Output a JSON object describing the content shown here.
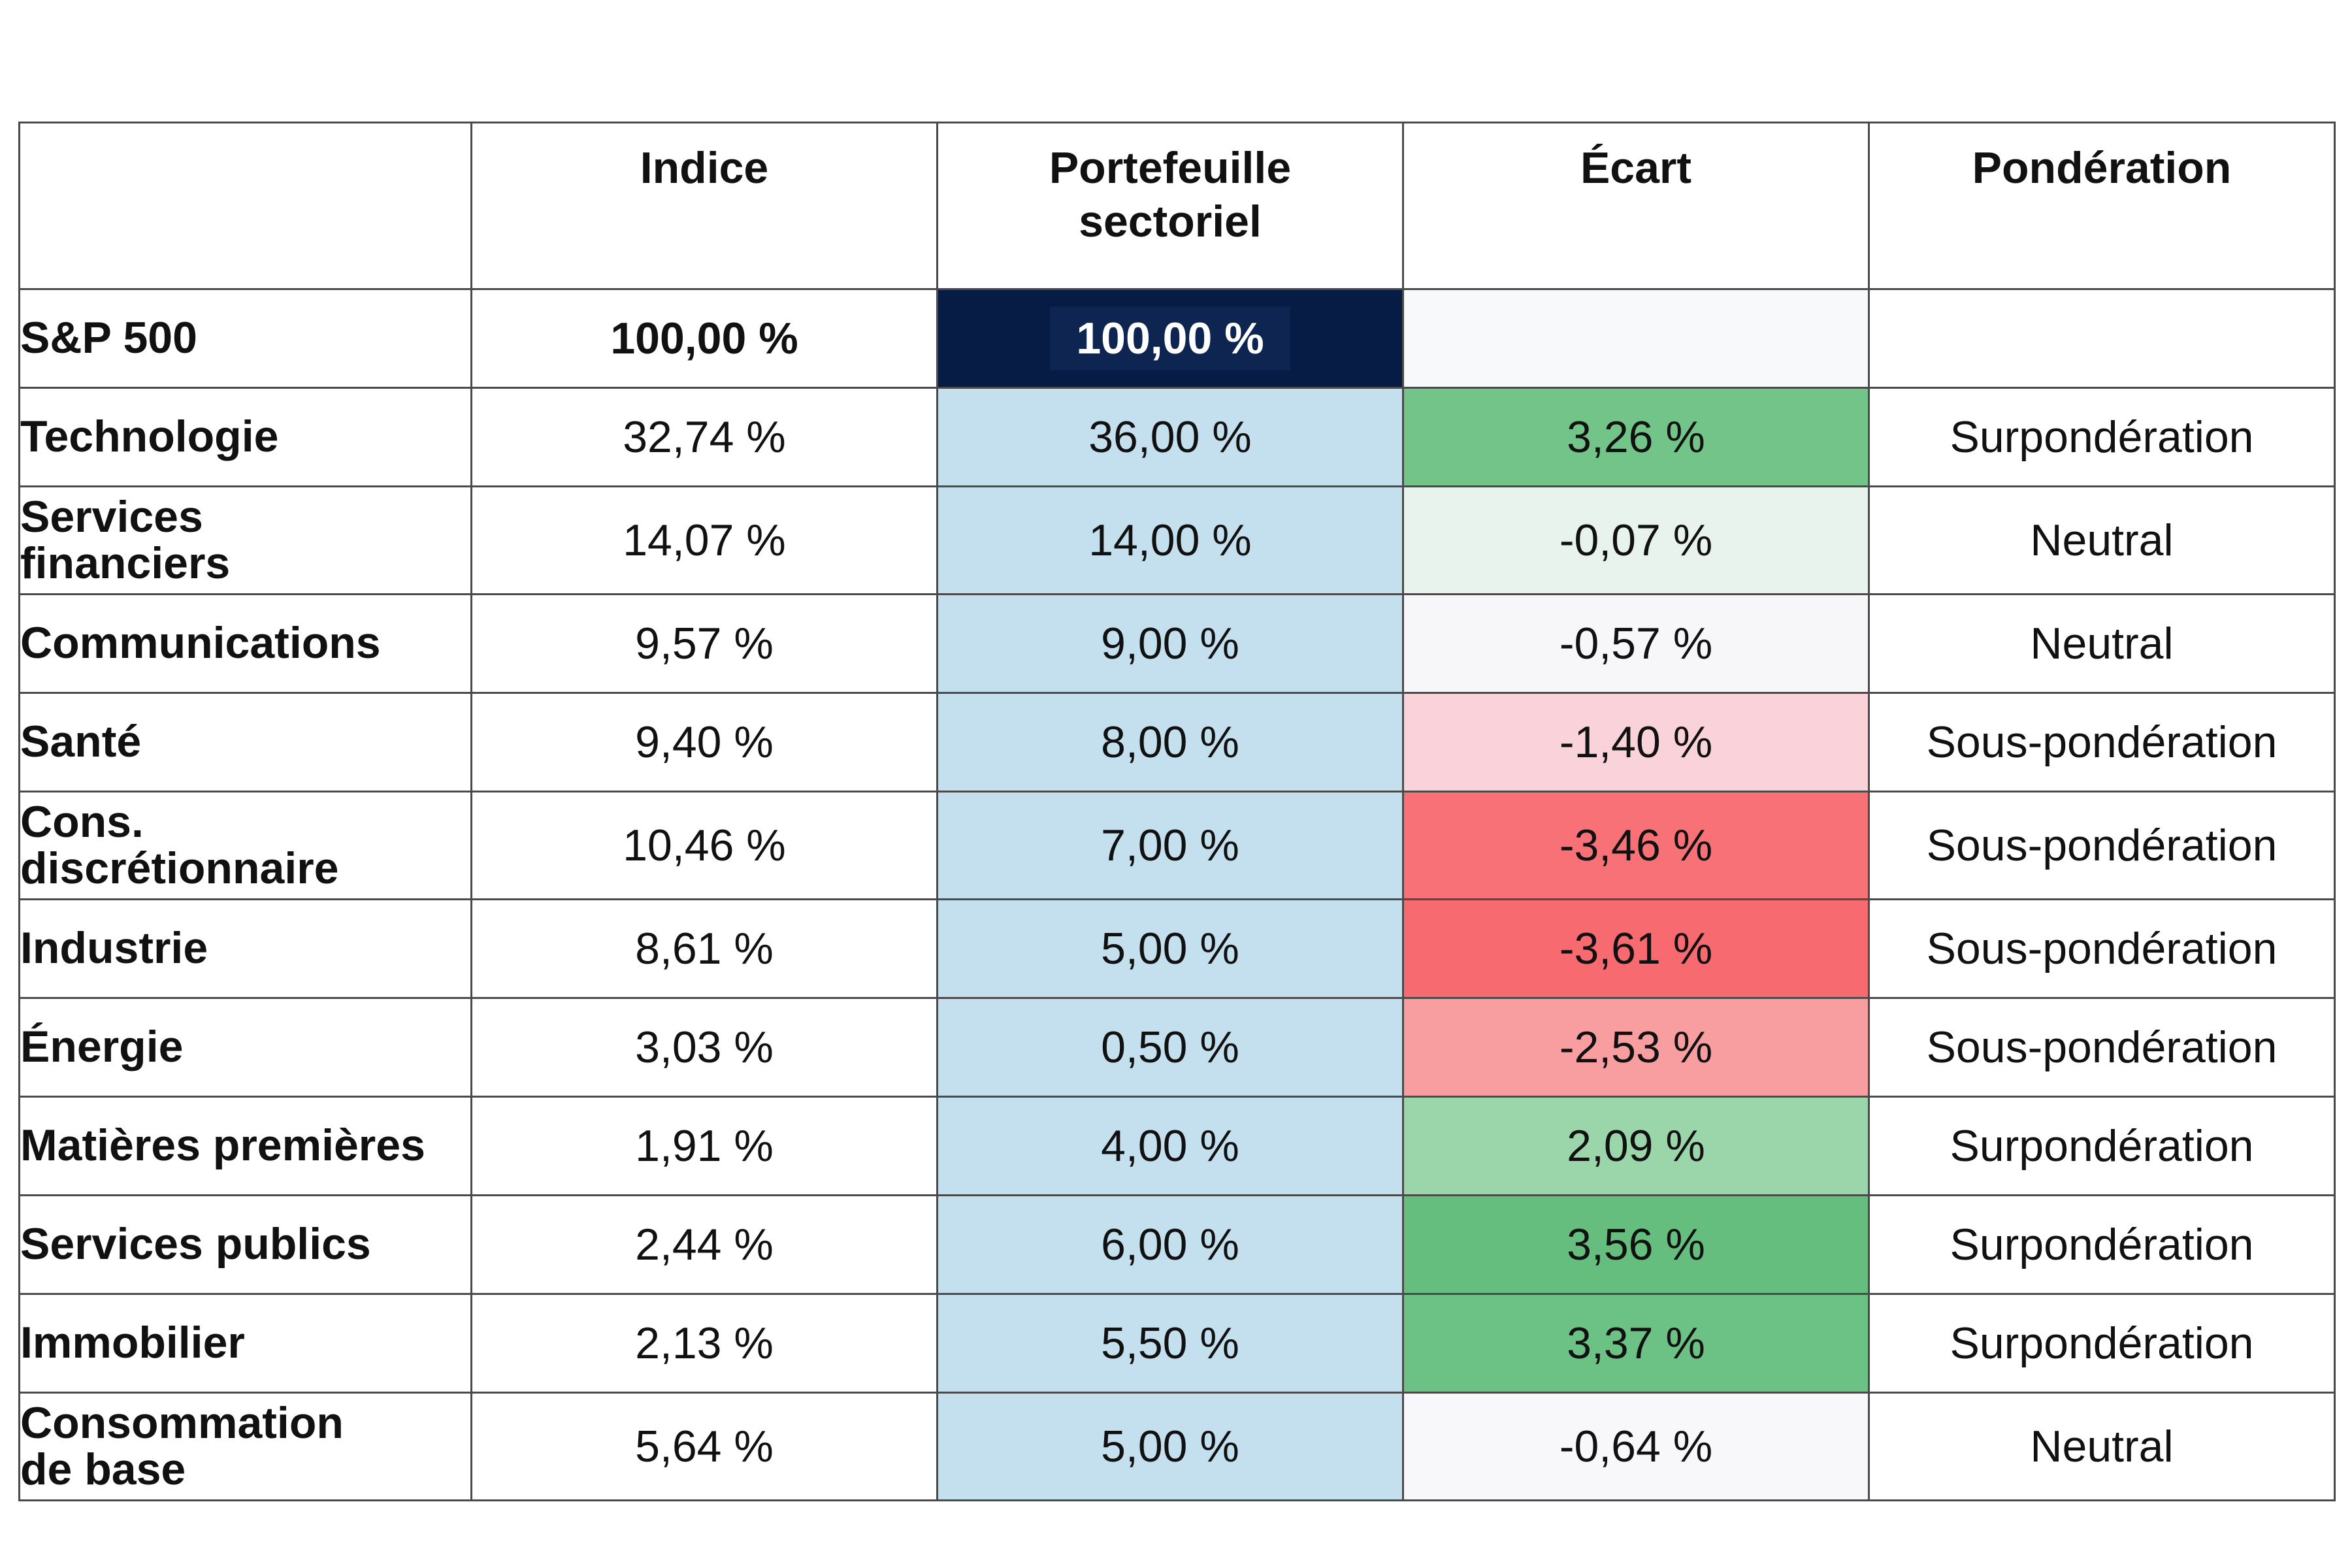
{
  "header": {
    "col_label": "",
    "col_index": "Indice",
    "col_portfolio": [
      "Portefeuille",
      "sectoriel"
    ],
    "col_gap": "Écart",
    "col_weighting": "Pondération"
  },
  "total_row": {
    "label": "S&P 500",
    "index": "100,00 %",
    "portfolio": "100,00 %",
    "gap": "",
    "weighting": ""
  },
  "rows": [
    {
      "label": [
        "Technologie"
      ],
      "index": "32,74 %",
      "portfolio": "36,00 %",
      "gap": "3,26 %",
      "weighting": "Surpondération",
      "gap_color": "#72c488"
    },
    {
      "label": [
        "Services",
        "financiers"
      ],
      "index": "14,07 %",
      "portfolio": "14,00 %",
      "gap": "-0,07 %",
      "weighting": "Neutral",
      "gap_color": "#e8f3ee"
    },
    {
      "label": [
        "Communications"
      ],
      "index": "9,57 %",
      "portfolio": "9,00 %",
      "gap": "-0,57 %",
      "weighting": "Neutral",
      "gap_color": "#f7f7fa"
    },
    {
      "label": [
        "Santé"
      ],
      "index": "9,40 %",
      "portfolio": "8,00 %",
      "gap": "-1,40 %",
      "weighting": "Sous-pondération",
      "gap_color": "#f9d3d9"
    },
    {
      "label": [
        "Cons.",
        "discrétionnaire"
      ],
      "index": "10,46 %",
      "portfolio": "7,00 %",
      "gap": "-3,46 %",
      "weighting": "Sous-pondération",
      "gap_color": "#f87176"
    },
    {
      "label": [
        "Industrie"
      ],
      "index": "8,61 %",
      "portfolio": "5,00 %",
      "gap": "-3,61 %",
      "weighting": "Sous-pondération",
      "gap_color": "#f76a6f"
    },
    {
      "label": [
        "Énergie"
      ],
      "index": "3,03 %",
      "portfolio": "0,50 %",
      "gap": "-2,53 %",
      "weighting": "Sous-pondération",
      "gap_color": "#f89ea0"
    },
    {
      "label": [
        "Matières premières"
      ],
      "index": "1,91 %",
      "portfolio": "4,00 %",
      "gap": "2,09 %",
      "weighting": "Surpondération",
      "gap_color": "#9bd5aa"
    },
    {
      "label": [
        "Services publics"
      ],
      "index": "2,44 %",
      "portfolio": "6,00 %",
      "gap": "3,56 %",
      "weighting": "Surpondération",
      "gap_color": "#65be7e"
    },
    {
      "label": [
        "Immobilier"
      ],
      "index": "2,13 %",
      "portfolio": "5,50 %",
      "gap": "3,37 %",
      "weighting": "Surpondération",
      "gap_color": "#6cc284"
    },
    {
      "label": [
        "Consommation",
        "de base"
      ],
      "index": "5,64 %",
      "portfolio": "5,00 %",
      "gap": "-0,64 %",
      "weighting": "Neutral",
      "gap_color": "#f8f7fa"
    }
  ],
  "colors": {
    "portfolio_fill": "#c4dfee",
    "total_portfolio_fill": "#061c45",
    "border": "#4a4a4a"
  }
}
